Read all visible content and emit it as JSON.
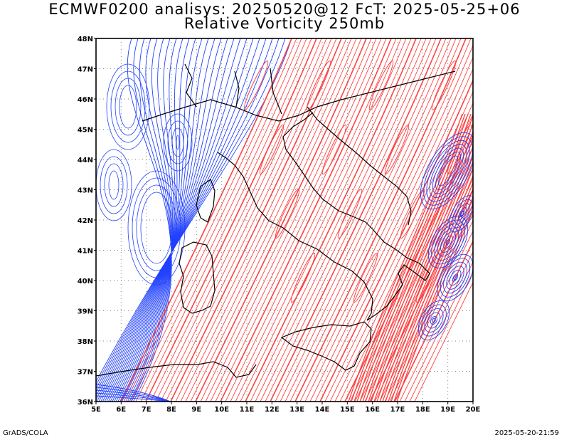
{
  "header": {
    "title_line1": "ECMWF0200 analisys: 20250520@12 FcT: 2025-05-25+06",
    "title_line2": "Relative Vorticity 250mb"
  },
  "footer": {
    "left": "GrADS/COLA",
    "right": "2025-05-20-21:59"
  },
  "map": {
    "lon_labels": [
      "5E",
      "6E",
      "7E",
      "8E",
      "9E",
      "10E",
      "11E",
      "12E",
      "13E",
      "14E",
      "15E",
      "16E",
      "17E",
      "18E",
      "19E",
      "20E"
    ],
    "lat_labels": [
      "48N",
      "47N",
      "46N",
      "45N",
      "44N",
      "43N",
      "42N",
      "41N",
      "40N",
      "39N",
      "38N",
      "37N",
      "36N"
    ],
    "lon_range": [
      5,
      20
    ],
    "lat_range": [
      36,
      48
    ],
    "colors": {
      "positive_contour": "#ff4040",
      "negative_contour": "#2040ff",
      "coastline": "#000000",
      "grid": "#7f7f7f"
    },
    "grid": "dotted"
  }
}
